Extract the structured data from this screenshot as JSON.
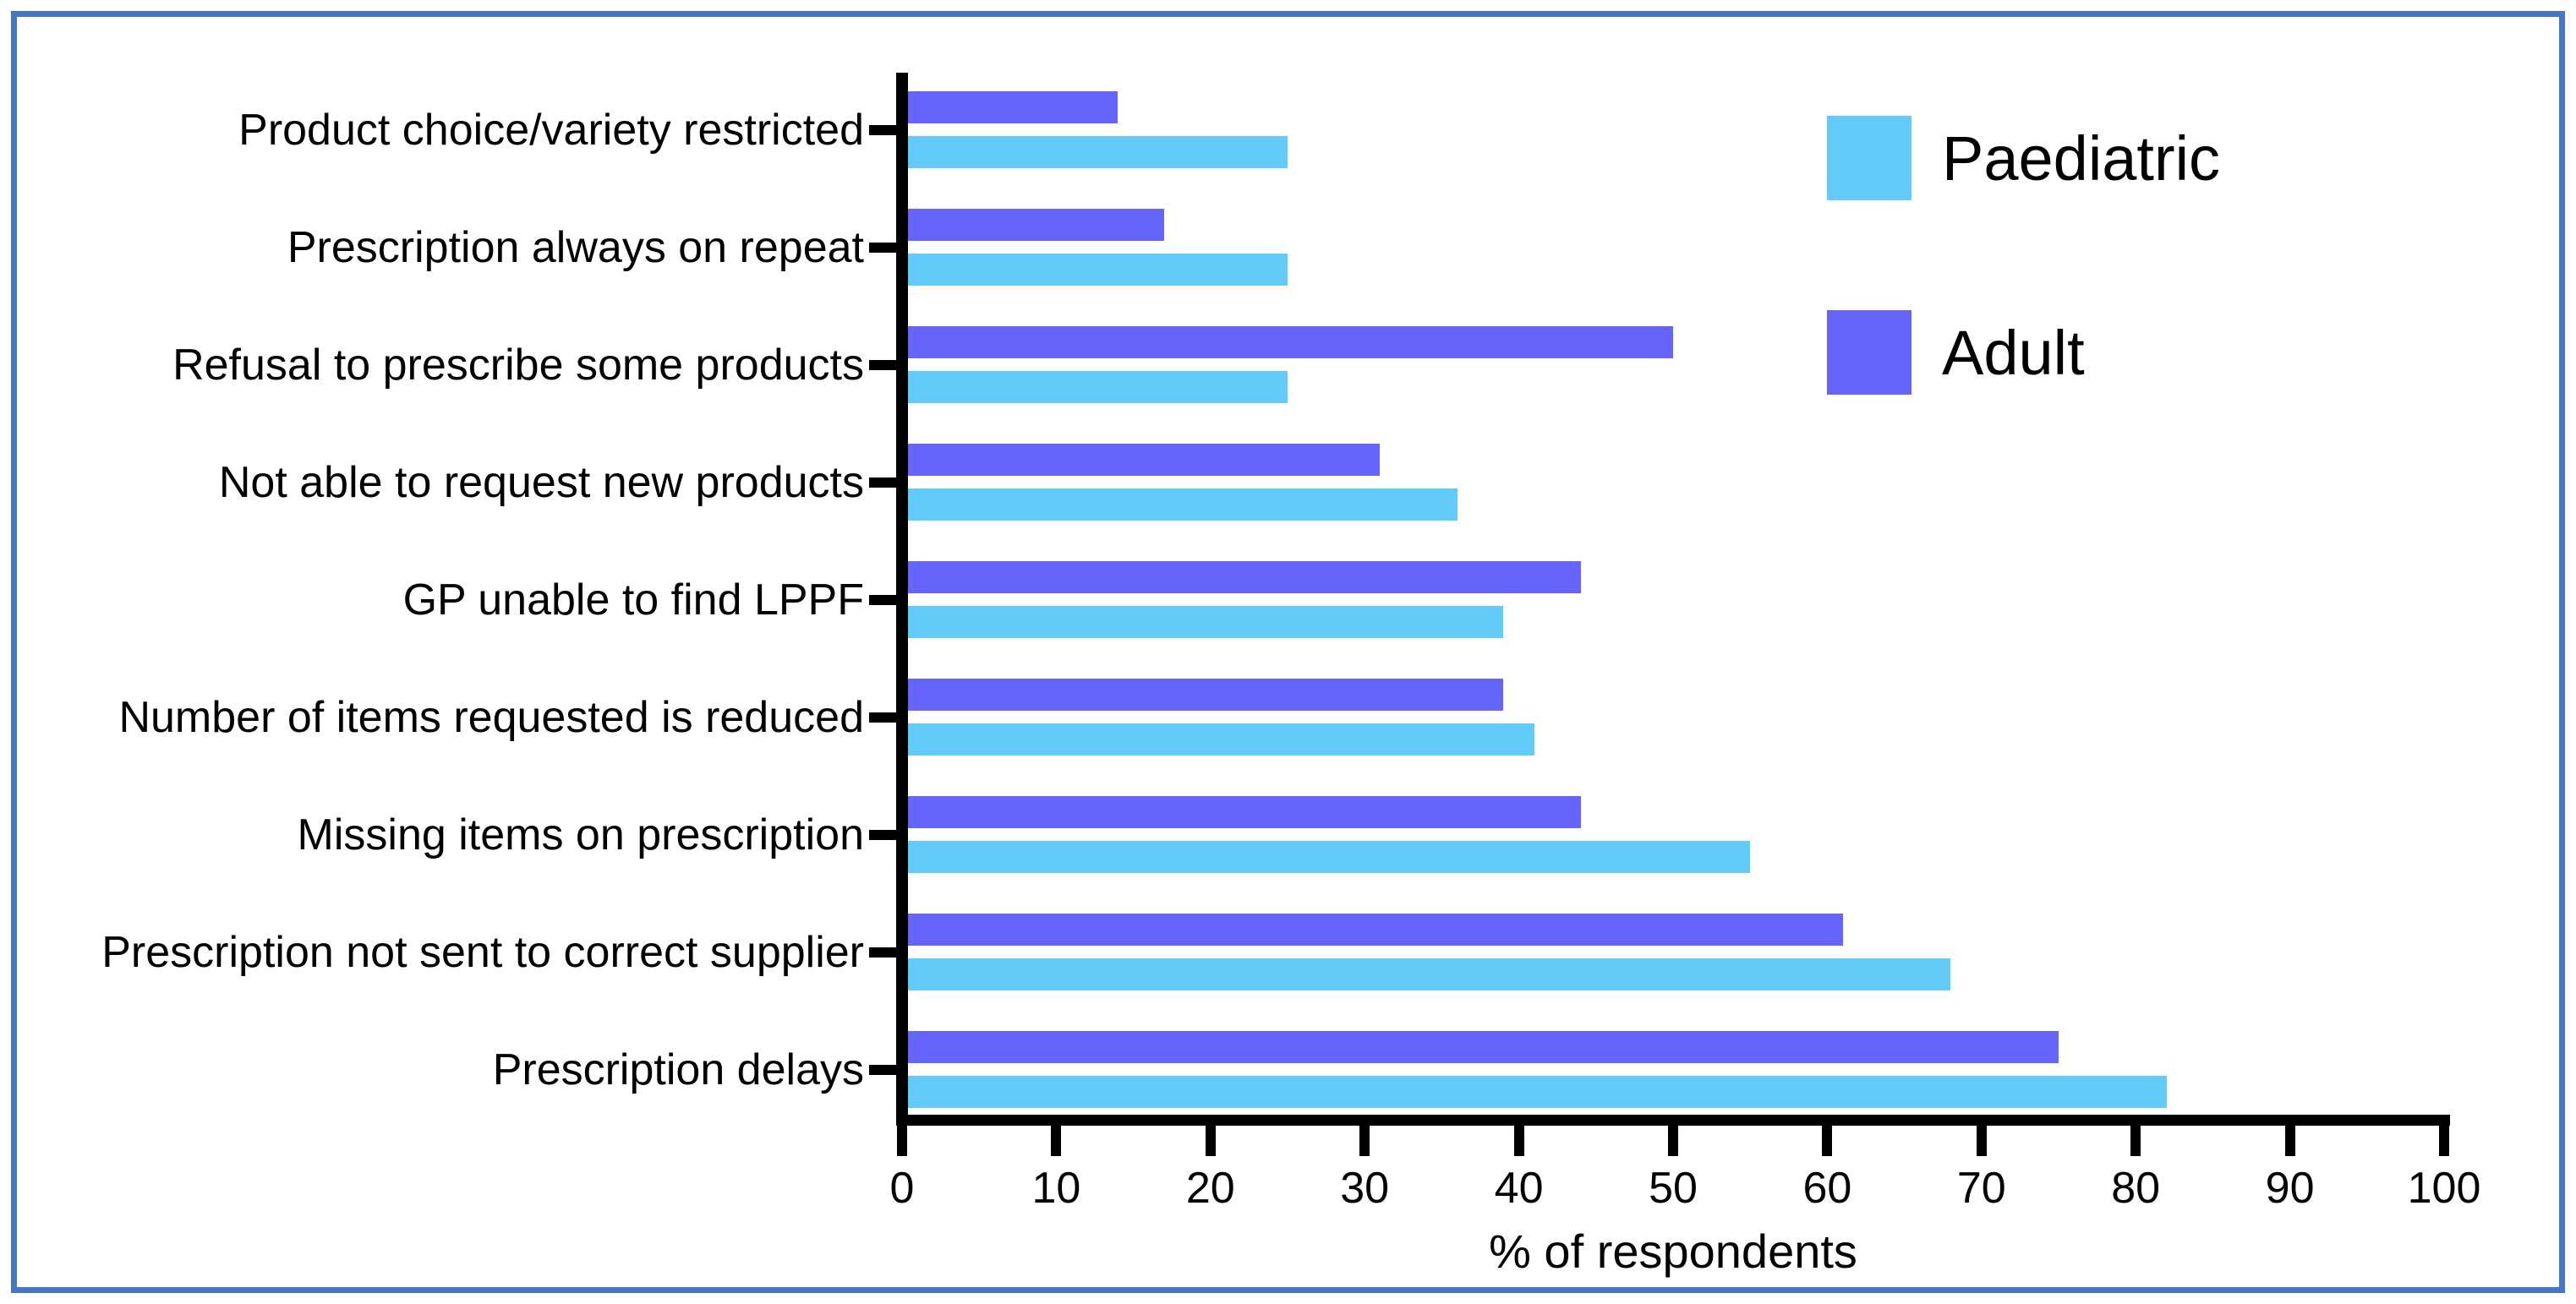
{
  "chart_data": {
    "type": "bar",
    "orientation": "horizontal",
    "title": "",
    "xlabel": "% of respondents",
    "ylabel": "",
    "xlim": [
      0,
      100
    ],
    "xticks": [
      0,
      10,
      20,
      30,
      40,
      50,
      60,
      70,
      80,
      90,
      100
    ],
    "grid": false,
    "legend_position": "top-right",
    "categories": [
      "Product choice/variety restricted",
      "Prescription always on repeat",
      "Refusal to prescribe some products",
      "Not able to request new products",
      "GP unable to find LPPF",
      "Number of items requested is reduced",
      "Missing items on prescription",
      "Prescription not sent to correct supplier",
      "Prescription delays"
    ],
    "series": [
      {
        "name": "Paediatric",
        "color": "#63CBF9",
        "values": [
          25,
          25,
          25,
          36,
          39,
          41,
          55,
          68,
          82
        ]
      },
      {
        "name": "Adult",
        "color": "#6565FB",
        "values": [
          14,
          17,
          50,
          31,
          44,
          39,
          44,
          61,
          75
        ]
      }
    ],
    "bar_order_top_to_bottom_in_group": [
      "Adult",
      "Paediatric"
    ]
  },
  "frame": {
    "border_color": "#4776C6",
    "background": "#ffffff"
  },
  "axis": {
    "color": "#000000"
  }
}
